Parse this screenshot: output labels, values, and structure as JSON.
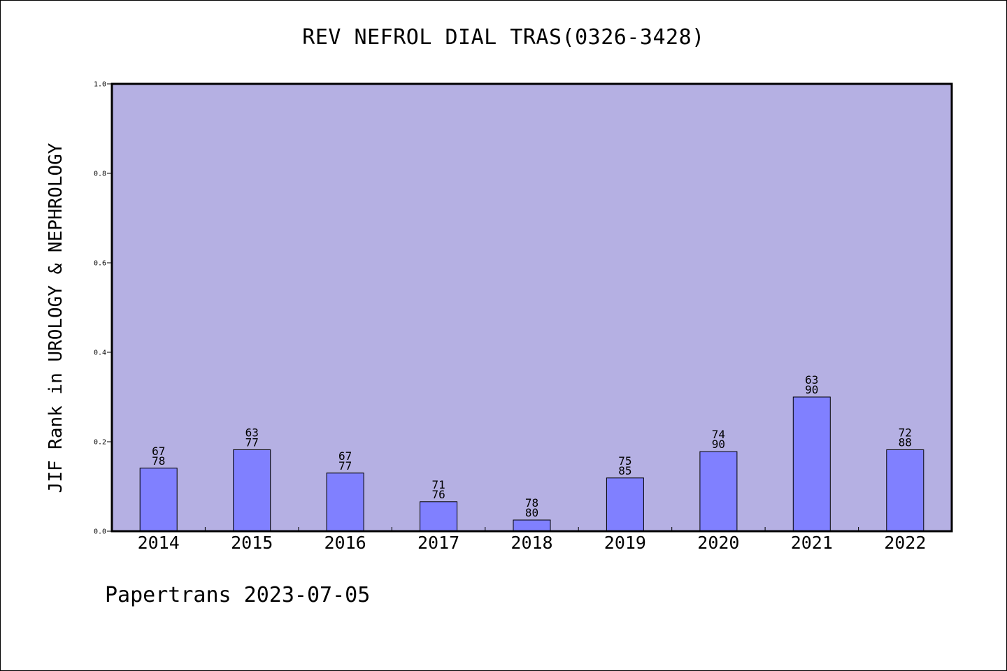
{
  "chart_data": {
    "type": "bar",
    "title": "REV NEFROL DIAL TRAS(0326-3428)",
    "xlabel": "",
    "ylabel": "JIF Rank in UROLOGY & NEPHROLOGY",
    "ylim": [
      0.0,
      1.0
    ],
    "y_ticks": [
      "0.0",
      "0.2",
      "0.4",
      "0.6",
      "0.8",
      "1.0"
    ],
    "categories": [
      "2014",
      "2015",
      "2016",
      "2017",
      "2018",
      "2019",
      "2020",
      "2021",
      "2022"
    ],
    "values": [
      0.141,
      0.182,
      0.13,
      0.066,
      0.025,
      0.119,
      0.178,
      0.3,
      0.182
    ],
    "label_top": [
      "67",
      "63",
      "67",
      "71",
      "78",
      "75",
      "74",
      "63",
      "72"
    ],
    "label_bottom": [
      "78",
      "77",
      "77",
      "76",
      "80",
      "85",
      "90",
      "90",
      "88"
    ],
    "colors": {
      "plot_background": "#b5b0e3",
      "bar_fill": "#8080ff",
      "bar_stroke": "#000000"
    },
    "grid": false,
    "legend": "none"
  },
  "footer": {
    "text": "Papertrans 2023-07-05"
  }
}
